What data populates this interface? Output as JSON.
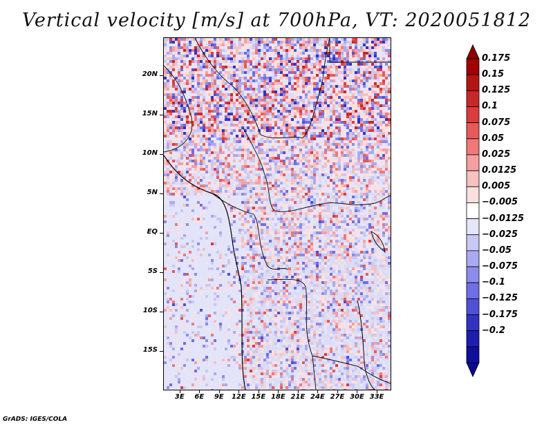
{
  "title": "Vertical velocity [m/s] at 700hPa, VT: 2020051812",
  "footer": "GrADS: IGES/COLA",
  "map": {
    "latitude_labels": [
      "20N",
      "15N",
      "10N",
      "5N",
      "EQ",
      "5S",
      "10S",
      "15S"
    ],
    "latitude_values": [
      20,
      15,
      10,
      5,
      0,
      -5,
      -10,
      -15
    ],
    "longitude_labels": [
      "3E",
      "6E",
      "9E",
      "12E",
      "15E",
      "18E",
      "21E",
      "24E",
      "27E",
      "30E",
      "33E"
    ],
    "longitude_values": [
      3,
      6,
      9,
      12,
      15,
      18,
      21,
      24,
      27,
      30,
      33
    ],
    "lon_range": [
      0.5,
      35.0
    ],
    "lat_range": [
      -19.8,
      24.8
    ]
  },
  "colorbar": {
    "labels": [
      "0.175",
      "0.15",
      "0.125",
      "0.1",
      "0.075",
      "0.05",
      "0.025",
      "0.0125",
      "0.005",
      "−0.005",
      "−0.0125",
      "−0.025",
      "−0.05",
      "−0.075",
      "−0.1",
      "−0.125",
      "−0.175",
      "−0.2"
    ],
    "colors": [
      "#a00000",
      "#b41414",
      "#c82828",
      "#dc3c3c",
      "#e65a5a",
      "#f07878",
      "#f5a0a0",
      "#f8c0c0",
      "#fce0e0",
      "#ffffff",
      "#e6e6fa",
      "#c8c8f5",
      "#aaaaf0",
      "#8c8ceb",
      "#6e6ee6",
      "#5050d7",
      "#3232c3",
      "#1e1eaf",
      "#0f0f9b"
    ],
    "top_arrow_color": "#8c0000",
    "bottom_arrow_color": "#0a0a8c"
  }
}
